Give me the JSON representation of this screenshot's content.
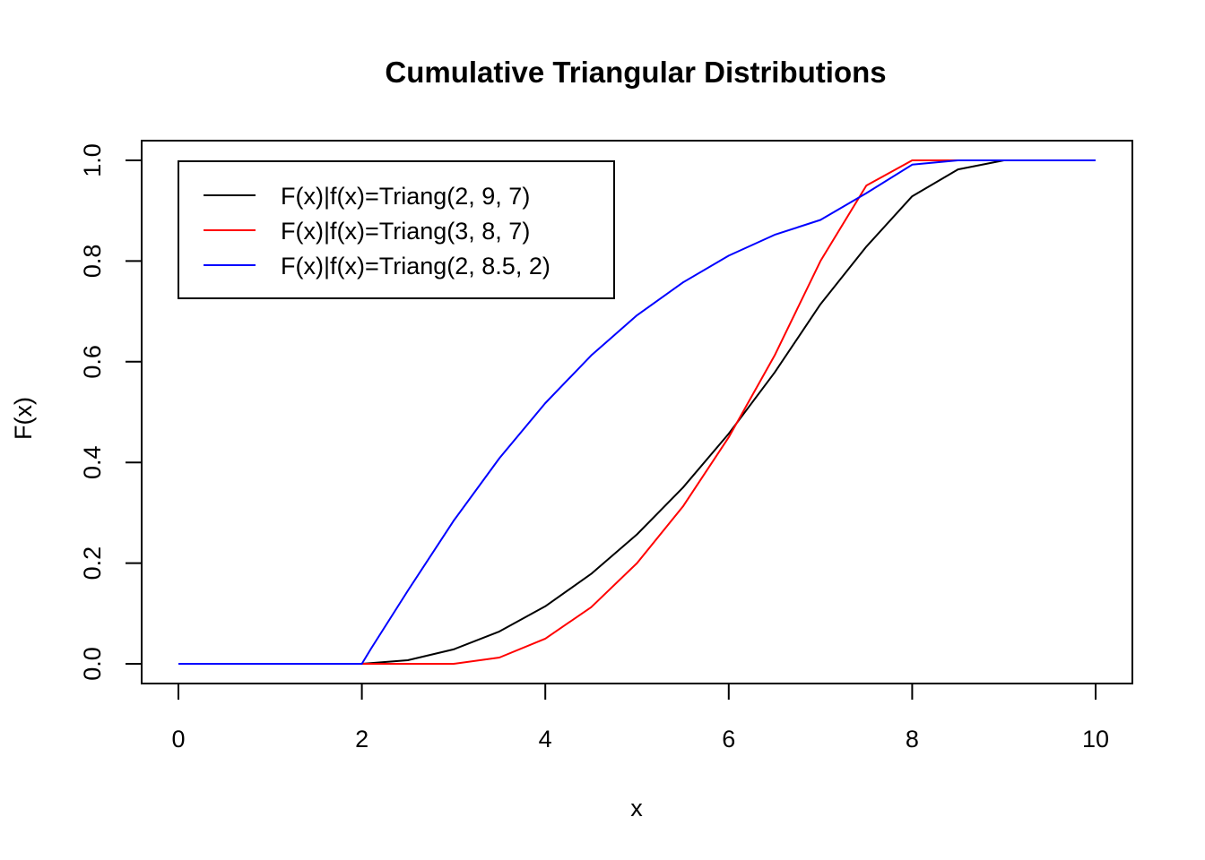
{
  "chart_data": {
    "type": "line",
    "title": "Cumulative Triangular Distributions",
    "xlabel": "x",
    "ylabel": "F(x)",
    "xlim": [
      0,
      10
    ],
    "ylim": [
      0,
      1
    ],
    "x_ticks": [
      "0",
      "2",
      "4",
      "6",
      "8",
      "10"
    ],
    "y_ticks": [
      "0.0",
      "0.2",
      "0.4",
      "0.6",
      "0.8",
      "1.0"
    ],
    "grid": false,
    "legend_position": "top-left",
    "series": [
      {
        "name": "F(x)|f(x)=Triang(2, 9, 7)",
        "color": "#000000",
        "x": [
          0,
          0.5,
          1,
          1.5,
          2,
          2.5,
          3,
          3.5,
          4,
          4.5,
          5,
          5.5,
          6,
          6.5,
          7,
          7.5,
          8,
          8.5,
          9,
          9.5,
          10
        ],
        "y": [
          0,
          0,
          0,
          0,
          0,
          0.0071,
          0.0286,
          0.0643,
          0.1143,
          0.1786,
          0.2571,
          0.35,
          0.4571,
          0.5786,
          0.7143,
          0.8286,
          0.9286,
          0.9821,
          1,
          1,
          1
        ]
      },
      {
        "name": "F(x)|f(x)=Triang(3, 8, 7)",
        "color": "#ff0000",
        "x": [
          0,
          0.5,
          1,
          1.5,
          2,
          2.5,
          3,
          3.5,
          4,
          4.5,
          5,
          5.5,
          6,
          6.5,
          7,
          7.5,
          8,
          8.5,
          9,
          9.5,
          10
        ],
        "y": [
          0,
          0,
          0,
          0,
          0,
          0,
          0,
          0.0125,
          0.05,
          0.1125,
          0.2,
          0.3125,
          0.45,
          0.6125,
          0.8,
          0.95,
          1,
          1,
          1,
          1,
          1
        ]
      },
      {
        "name": "F(x)|f(x)=Triang(2, 8.5, 2)",
        "color": "#0000ff",
        "x": [
          0,
          0.5,
          1,
          1.5,
          2,
          2.1,
          2.5,
          3,
          3.5,
          4,
          4.5,
          5,
          5.5,
          6,
          6.5,
          7,
          7.5,
          8,
          8.5,
          9,
          9.5,
          10
        ],
        "y": [
          0,
          0,
          0,
          0,
          0,
          0.03,
          0.145,
          0.284,
          0.4083,
          0.5178,
          0.6124,
          0.6923,
          0.7574,
          0.8107,
          0.8521,
          0.8816,
          0.9349,
          0.9915,
          1,
          1,
          1,
          1
        ]
      }
    ]
  }
}
